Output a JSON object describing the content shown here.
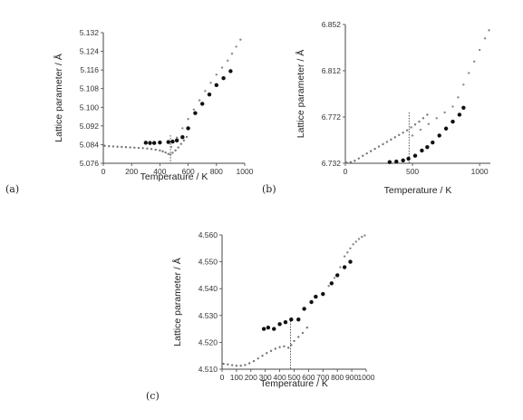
{
  "chart_data": [
    {
      "panel_label": "(a)",
      "type": "scatter",
      "xlabel": "Temperature / K",
      "ylabel": "Lattice parameter / Å",
      "xlim": [
        0,
        1000
      ],
      "ylim": [
        5.076,
        5.132
      ],
      "x_ticks": [
        "0",
        "200",
        "400",
        "600",
        "800",
        "1000"
      ],
      "y_ticks": [
        "5.076",
        "5.084",
        "5.092",
        "5.100",
        "5.108",
        "5.116",
        "5.124",
        "5.132"
      ],
      "grid": false,
      "legend": "none",
      "dotted_line_x": 475,
      "series": [
        {
          "marker": "small-open",
          "color": "#777777",
          "x": [
            10,
            40,
            70,
            100,
            130,
            160,
            190,
            220,
            250,
            280,
            310,
            340,
            370,
            400,
            420,
            440,
            460,
            475,
            490,
            510,
            530,
            550,
            570,
            590
          ],
          "y": [
            5.0835,
            5.0833,
            5.0832,
            5.0831,
            5.083,
            5.0829,
            5.0828,
            5.0827,
            5.0826,
            5.0825,
            5.0823,
            5.0821,
            5.0818,
            5.0815,
            5.0811,
            5.0806,
            5.08,
            5.0797,
            5.0805,
            5.0815,
            5.0828,
            5.0843,
            5.0858,
            5.0873
          ]
        },
        {
          "marker": "small-open",
          "color": "#888888",
          "x": [
            480,
            520,
            560,
            600,
            640,
            680,
            720,
            760,
            800,
            840,
            880,
            910,
            940,
            970
          ],
          "y": [
            5.083,
            5.087,
            5.091,
            5.095,
            5.099,
            5.103,
            5.107,
            5.1105,
            5.114,
            5.117,
            5.12,
            5.123,
            5.126,
            5.129
          ]
        },
        {
          "marker": "filled",
          "color": "#111111",
          "x": [
            300,
            330,
            360,
            400,
            460,
            490,
            520,
            560,
            600,
            650,
            700,
            750,
            800,
            850,
            900
          ],
          "y": [
            5.0848,
            5.0847,
            5.0847,
            5.0849,
            5.0851,
            5.0853,
            5.0858,
            5.0872,
            5.091,
            5.0975,
            5.1015,
            5.1055,
            5.1095,
            5.1125,
            5.1155
          ]
        }
      ]
    },
    {
      "panel_label": "(b)",
      "type": "scatter",
      "xlabel": "Temperature / K",
      "ylabel": "Lattice parameter / Å",
      "xlim": [
        0,
        1080
      ],
      "ylim": [
        6.732,
        6.852
      ],
      "x_ticks": [
        "0",
        "500",
        "1000"
      ],
      "y_ticks": [
        "6.732",
        "6.772",
        "6.812",
        "6.852"
      ],
      "grid": false,
      "legend": "none",
      "dotted_line_x": 475,
      "series": [
        {
          "marker": "small-open",
          "color": "#777777",
          "x": [
            10,
            40,
            70,
            100,
            130,
            160,
            190,
            220,
            250,
            280,
            310,
            340,
            370,
            400,
            430,
            460,
            490,
            520,
            550,
            580,
            610
          ],
          "y": [
            6.7325,
            6.733,
            6.7342,
            6.7362,
            6.7385,
            6.7405,
            6.7425,
            6.7445,
            6.7465,
            6.7485,
            6.7505,
            6.7525,
            6.7545,
            6.7565,
            6.7585,
            6.7605,
            6.763,
            6.7655,
            6.768,
            6.771,
            6.774
          ]
        },
        {
          "marker": "small-open",
          "color": "#888888",
          "x": [
            500,
            560,
            620,
            680,
            740,
            800,
            840,
            880,
            920,
            960,
            1000,
            1040,
            1070
          ],
          "y": [
            6.756,
            6.761,
            6.766,
            6.771,
            6.776,
            6.781,
            6.789,
            6.8,
            6.81,
            6.82,
            6.83,
            6.84,
            6.847
          ]
        },
        {
          "marker": "filled",
          "color": "#111111",
          "x": [
            330,
            380,
            430,
            470,
            520,
            570,
            610,
            650,
            700,
            750,
            800,
            850,
            880
          ],
          "y": [
            6.733,
            6.7335,
            6.7345,
            6.736,
            6.7385,
            6.743,
            6.746,
            6.75,
            6.756,
            6.762,
            6.768,
            6.774,
            6.78
          ]
        }
      ]
    },
    {
      "panel_label": "(c)",
      "type": "scatter",
      "xlabel": "Temperature / K",
      "ylabel": "Lattice parameter / Å",
      "xlim": [
        0,
        1000
      ],
      "ylim": [
        4.51,
        4.56
      ],
      "x_ticks": [
        "0",
        "100",
        "200",
        "300",
        "400",
        "500",
        "600",
        "700",
        "800",
        "900",
        "1000"
      ],
      "y_ticks": [
        "4.510",
        "4.520",
        "4.530",
        "4.540",
        "4.550",
        "4.560"
      ],
      "grid": false,
      "legend": "none",
      "dotted_line_x": 475,
      "series": [
        {
          "marker": "small-open",
          "color": "#777777",
          "x": [
            10,
            40,
            70,
            100,
            130,
            160,
            190,
            220,
            250,
            280,
            310,
            340,
            370,
            400,
            430,
            460,
            480,
            500,
            530,
            560,
            590
          ],
          "y": [
            4.512,
            4.5118,
            4.5115,
            4.5113,
            4.5113,
            4.5116,
            4.5122,
            4.513,
            4.514,
            4.515,
            4.516,
            4.5168,
            4.5176,
            4.5182,
            4.5185,
            4.518,
            4.519,
            4.5205,
            4.522,
            4.5235,
            4.5255
          ]
        },
        {
          "marker": "small-open",
          "color": "#888888",
          "x": [
            700,
            740,
            780,
            820,
            850,
            870,
            890,
            910,
            930,
            950,
            970,
            990
          ],
          "y": [
            4.538,
            4.541,
            4.544,
            4.548,
            4.552,
            4.5535,
            4.555,
            4.5565,
            4.5575,
            4.5585,
            4.5593,
            4.5598
          ]
        },
        {
          "marker": "filled",
          "color": "#111111",
          "x": [
            290,
            320,
            360,
            400,
            440,
            480,
            530,
            570,
            620,
            650,
            700,
            760,
            800,
            850,
            890
          ],
          "y": [
            4.525,
            4.5255,
            4.525,
            4.5268,
            4.5275,
            4.5285,
            4.5285,
            4.5325,
            4.535,
            4.537,
            4.538,
            4.542,
            4.545,
            4.548,
            4.55
          ]
        }
      ]
    }
  ]
}
